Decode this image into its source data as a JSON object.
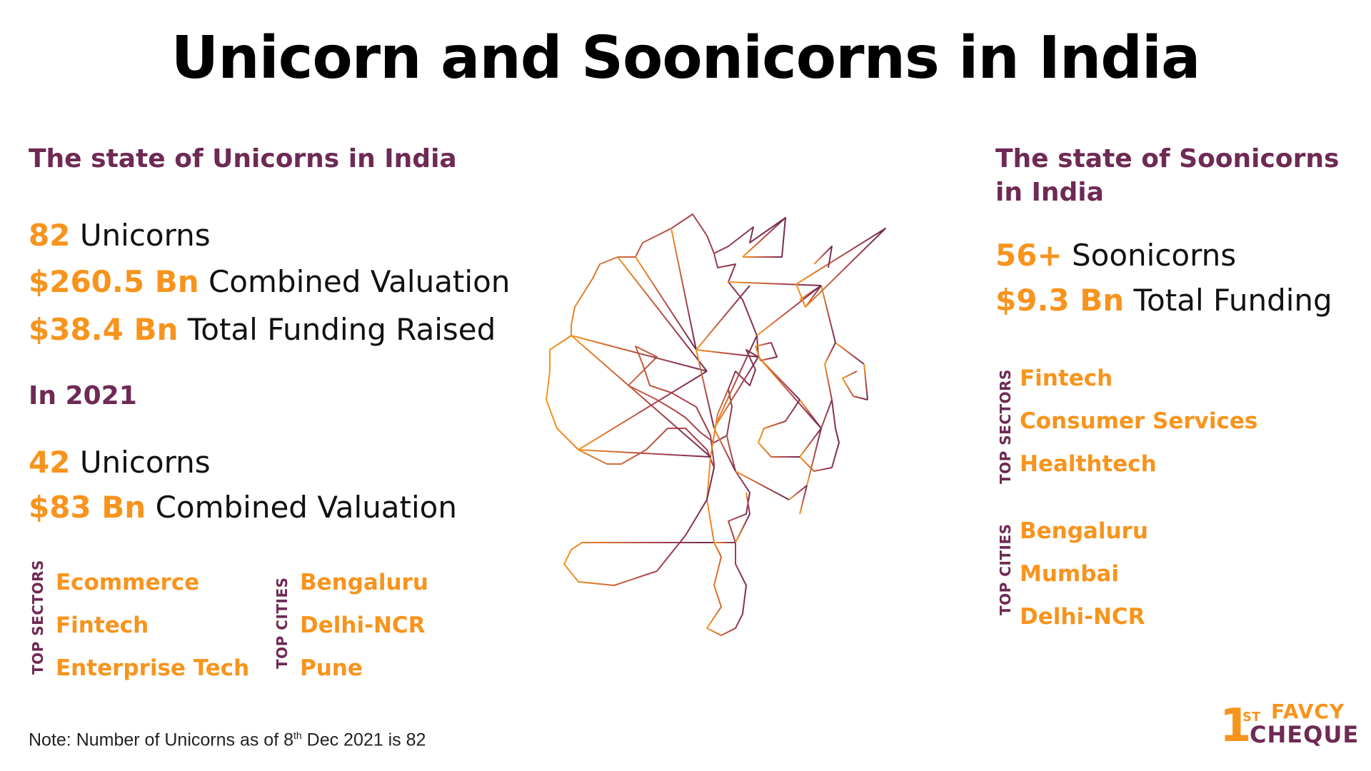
{
  "title": "Unicorn and Soonicorns in India",
  "colors": {
    "accent_orange": "#f7941d",
    "heading_purple": "#6e2a54",
    "text": "#111111"
  },
  "unicorns": {
    "heading": "The state of Unicorns in India",
    "stats": [
      {
        "value": "82",
        "label": "Unicorns"
      },
      {
        "value": "$260.5 Bn",
        "label": "Combined Valuation"
      },
      {
        "value": "$38.4 Bn",
        "label": "Total Funding Raised"
      }
    ],
    "year_heading": "In 2021",
    "year_stats": [
      {
        "value": "42",
        "label": "Unicorns"
      },
      {
        "value": "$83 Bn",
        "label": "Combined Valuation"
      }
    ],
    "top_sectors_label": "TOP SECTORS",
    "top_sectors": [
      "Ecommerce",
      "Fintech",
      "Enterprise Tech"
    ],
    "top_cities_label": "TOP CITIES",
    "top_cities": [
      "Bengaluru",
      "Delhi-NCR",
      "Pune"
    ]
  },
  "soonicorns": {
    "heading_line1": "The state of Soonicorns",
    "heading_line2": "in India",
    "stats": [
      {
        "value": "56+",
        "label": "Soonicorns"
      },
      {
        "value": "$9.3 Bn",
        "label": "Total Funding"
      }
    ],
    "top_sectors_label": "TOP SECTORS",
    "top_sectors": [
      "Fintech",
      "Consumer Services",
      "Healthtech"
    ],
    "top_cities_label": "TOP CITIES",
    "top_cities": [
      "Bengaluru",
      "Mumbai",
      "Delhi-NCR"
    ]
  },
  "note": {
    "prefix": "Note: Number of Unicorns as of 8",
    "sup": "th",
    "suffix": " Dec 2021 is 82"
  },
  "logo": {
    "one": "1",
    "st": "ST",
    "top": "FAVCY",
    "bottom": "CHEQUE"
  },
  "illustration_icon": "geometric-unicorn-head-icon"
}
